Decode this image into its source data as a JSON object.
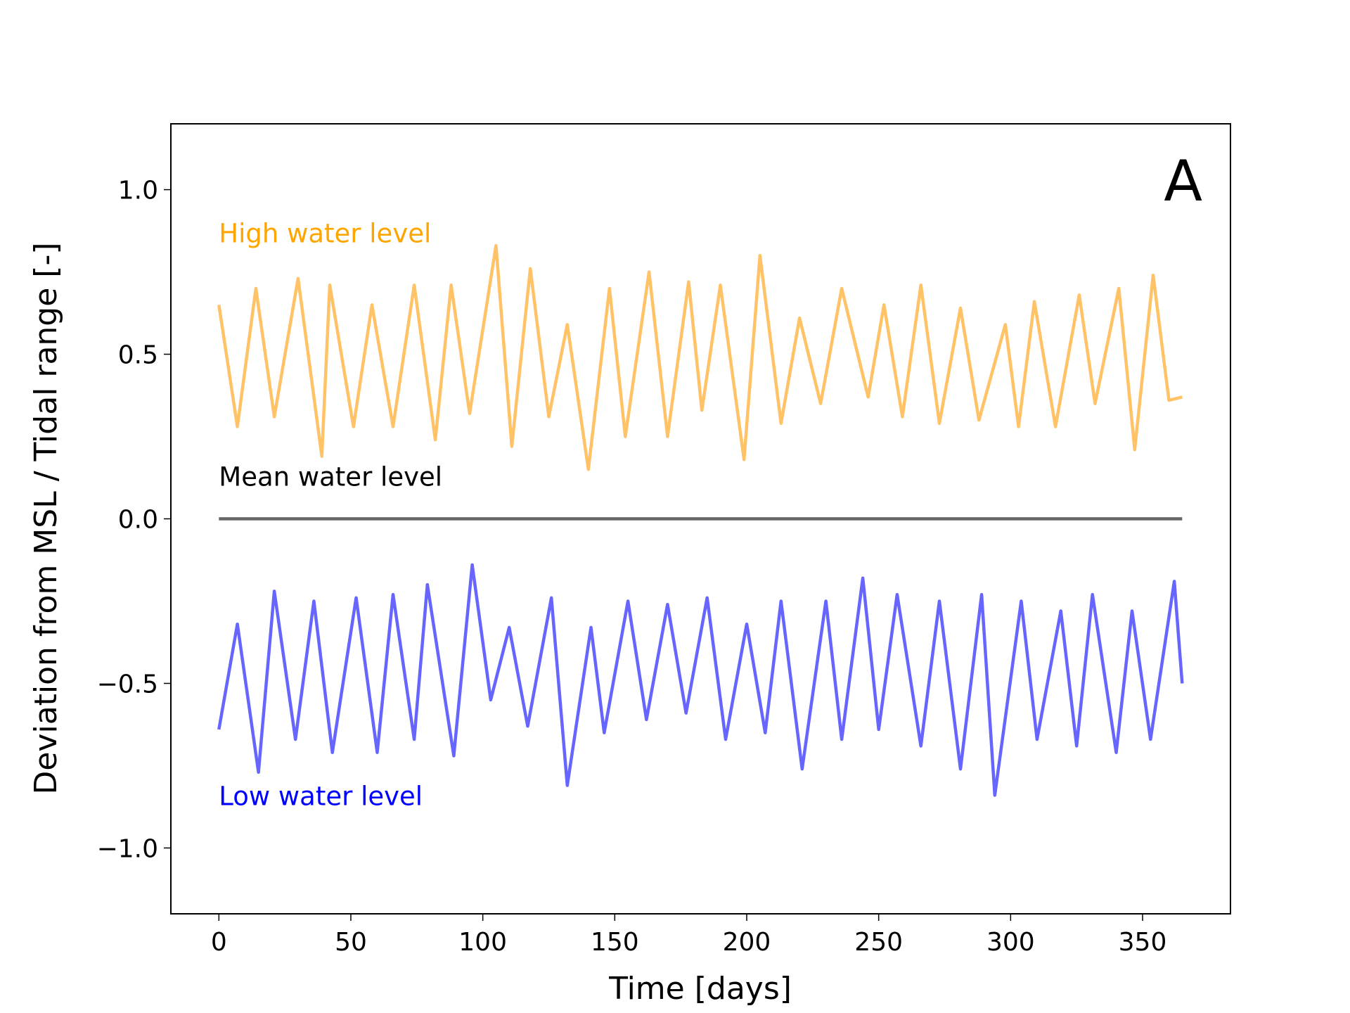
{
  "chart_data": {
    "type": "line",
    "xlabel": "Time [days]",
    "ylabel": "Deviation from MSL / Tidal range [-]",
    "panel_label": "A",
    "xlim": [
      -18.2,
      383.3
    ],
    "ylim": [
      -1.2,
      1.2
    ],
    "xticks": [
      0,
      50,
      100,
      150,
      200,
      250,
      300,
      350
    ],
    "yticks": [
      {
        "value": -1,
        "label": "−1.0"
      },
      {
        "value": -0.5,
        "label": "−0.5"
      },
      {
        "value": 0,
        "label": "0.0"
      },
      {
        "value": 0.5,
        "label": "0.5"
      },
      {
        "value": 1,
        "label": "1.0"
      }
    ],
    "grid": false,
    "series": [
      {
        "name": "High water level",
        "color": "#ffc266",
        "label_color": "#ffa500",
        "x": [
          0,
          7,
          14,
          21,
          30,
          39,
          42,
          51,
          58,
          66,
          74,
          82,
          88,
          95,
          105,
          111,
          118,
          125,
          132,
          140,
          148,
          154,
          163,
          170,
          178,
          183,
          190,
          199,
          205,
          213,
          220,
          228,
          236,
          246,
          252,
          259,
          266,
          273,
          281,
          288,
          298,
          303,
          309,
          317,
          326,
          332,
          341,
          347,
          354,
          360,
          365
        ],
        "values": [
          0.65,
          0.28,
          0.7,
          0.31,
          0.73,
          0.19,
          0.71,
          0.28,
          0.65,
          0.28,
          0.71,
          0.24,
          0.71,
          0.32,
          0.83,
          0.22,
          0.76,
          0.31,
          0.59,
          0.15,
          0.7,
          0.25,
          0.75,
          0.25,
          0.72,
          0.33,
          0.71,
          0.18,
          0.8,
          0.29,
          0.61,
          0.35,
          0.7,
          0.37,
          0.65,
          0.31,
          0.71,
          0.29,
          0.64,
          0.3,
          0.59,
          0.28,
          0.66,
          0.28,
          0.68,
          0.35,
          0.7,
          0.21,
          0.74,
          0.36,
          0.37
        ]
      },
      {
        "name": "Mean water level",
        "color": "#666666",
        "label_color": "#000000",
        "x": [
          0,
          365
        ],
        "values": [
          0,
          0
        ]
      },
      {
        "name": "Low water level",
        "color": "#6666ff",
        "label_color": "#0000ff",
        "x": [
          0,
          7,
          15,
          21,
          29,
          36,
          43,
          52,
          60,
          66,
          74,
          79,
          89,
          96,
          103,
          110,
          117,
          126,
          132,
          141,
          146,
          155,
          162,
          170,
          177,
          185,
          192,
          200,
          207,
          213,
          221,
          230,
          236,
          244,
          250,
          257,
          266,
          273,
          281,
          289,
          294,
          304,
          310,
          319,
          325,
          331,
          340,
          346,
          353,
          362,
          365
        ],
        "values": [
          -0.64,
          -0.32,
          -0.77,
          -0.22,
          -0.67,
          -0.25,
          -0.71,
          -0.24,
          -0.71,
          -0.23,
          -0.67,
          -0.2,
          -0.72,
          -0.14,
          -0.55,
          -0.33,
          -0.63,
          -0.24,
          -0.81,
          -0.33,
          -0.65,
          -0.25,
          -0.61,
          -0.26,
          -0.59,
          -0.24,
          -0.67,
          -0.32,
          -0.65,
          -0.25,
          -0.76,
          -0.25,
          -0.67,
          -0.18,
          -0.64,
          -0.23,
          -0.69,
          -0.25,
          -0.76,
          -0.23,
          -0.84,
          -0.25,
          -0.67,
          -0.28,
          -0.69,
          -0.23,
          -0.71,
          -0.28,
          -0.67,
          -0.19,
          -0.5
        ]
      }
    ]
  }
}
